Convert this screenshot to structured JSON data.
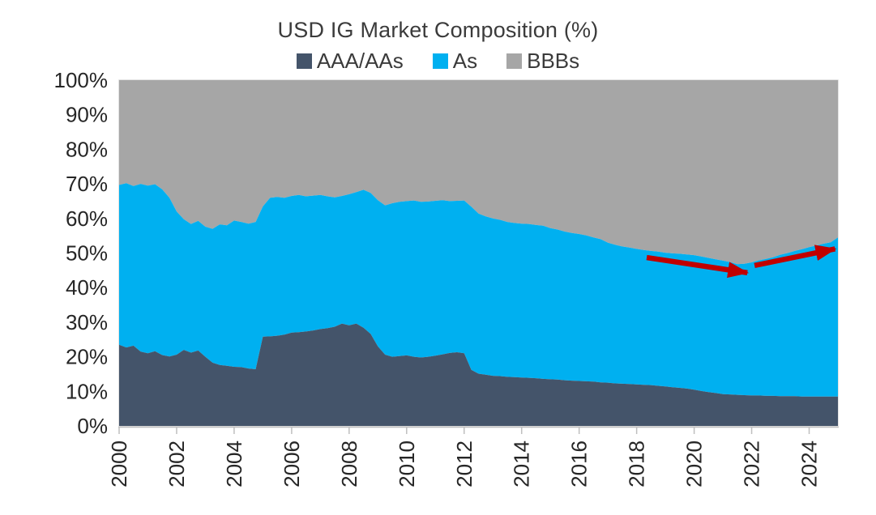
{
  "chart": {
    "title": "USD IG Market Composition (%)",
    "legend": [
      {
        "label": "AAA/AAs",
        "color": "#44546A"
      },
      {
        "label": "As",
        "color": "#00B0F0"
      },
      {
        "label": "BBBs",
        "color": "#A6A6A6"
      }
    ]
  },
  "axis": {
    "line_color": "#BFBFBF",
    "text_color": "#262626",
    "plot_border_color": "#D9D9D9"
  },
  "chart_data": {
    "type": "area",
    "stacked": true,
    "stack_total": 100,
    "title": "USD IG Market Composition (%)",
    "xlabel": "",
    "ylabel": "",
    "ylim": [
      0,
      100
    ],
    "grid": false,
    "legend_position": "top",
    "x_start": 2000.0,
    "x_end": 2025.0,
    "x_step": 0.25,
    "x_ticks": [
      2000,
      2002,
      2004,
      2006,
      2008,
      2010,
      2012,
      2014,
      2016,
      2018,
      2020,
      2022,
      2024
    ],
    "x_tick_labels": [
      "2000",
      "2002",
      "2004",
      "2006",
      "2008",
      "2010",
      "2012",
      "2014",
      "2016",
      "2018",
      "2020",
      "2022",
      "2024"
    ],
    "y_ticks": [
      0,
      10,
      20,
      30,
      40,
      50,
      60,
      70,
      80,
      90,
      100
    ],
    "y_tick_labels": [
      "0%",
      "10%",
      "20%",
      "30%",
      "40%",
      "50%",
      "60%",
      "70%",
      "80%",
      "90%",
      "100%"
    ],
    "series": [
      {
        "name": "AAA/AAs",
        "color": "#44546A",
        "values": [
          23.5,
          22.7,
          23.2,
          21.5,
          21.0,
          21.6,
          20.5,
          20.1,
          20.6,
          22.0,
          21.2,
          21.8,
          20.0,
          18.3,
          17.6,
          17.4,
          17.1,
          17.0,
          16.6,
          16.4,
          25.8,
          25.9,
          26.1,
          26.4,
          27.0,
          27.1,
          27.3,
          27.6,
          28.0,
          28.3,
          28.7,
          29.6,
          29.1,
          29.6,
          28.4,
          26.6,
          23.0,
          20.6,
          20.0,
          20.2,
          20.4,
          20.0,
          19.8,
          20.0,
          20.3,
          20.7,
          21.1,
          21.3,
          21.0,
          16.2,
          15.1,
          14.8,
          14.5,
          14.4,
          14.2,
          14.1,
          14.0,
          13.9,
          13.8,
          13.6,
          13.5,
          13.4,
          13.2,
          13.1,
          13.0,
          12.9,
          12.8,
          12.6,
          12.5,
          12.3,
          12.2,
          12.1,
          12.0,
          11.9,
          11.8,
          11.6,
          11.4,
          11.2,
          11.0,
          10.8,
          10.5,
          10.1,
          9.8,
          9.5,
          9.2,
          9.1,
          9.0,
          8.9,
          8.8,
          8.8,
          8.7,
          8.7,
          8.6,
          8.6,
          8.6,
          8.5,
          8.5,
          8.5,
          8.5,
          8.5,
          8.5
        ]
      },
      {
        "name": "As",
        "color": "#00B0F0",
        "values": [
          46.2,
          47.5,
          46.2,
          48.5,
          48.5,
          48.3,
          47.9,
          45.9,
          41.4,
          37.8,
          37.2,
          37.5,
          37.6,
          38.7,
          40.7,
          40.6,
          42.3,
          42.0,
          41.9,
          42.6,
          37.7,
          40.1,
          40.1,
          39.6,
          39.5,
          39.7,
          39.1,
          39.0,
          38.8,
          38.1,
          37.4,
          36.9,
          37.9,
          38.0,
          39.9,
          40.8,
          42.3,
          43.2,
          44.4,
          44.6,
          44.6,
          45.2,
          45.0,
          44.9,
          44.8,
          44.6,
          43.9,
          43.8,
          44.2,
          47.2,
          46.3,
          45.8,
          45.5,
          45.2,
          44.8,
          44.6,
          44.5,
          44.5,
          44.3,
          44.3,
          43.7,
          43.4,
          43.0,
          42.7,
          42.5,
          42.2,
          41.7,
          41.4,
          40.5,
          40.1,
          39.7,
          39.5,
          39.2,
          39.0,
          38.8,
          38.8,
          38.7,
          38.7,
          38.8,
          38.8,
          38.9,
          38.9,
          38.8,
          38.7,
          38.6,
          38.3,
          37.8,
          38.0,
          38.5,
          39.1,
          39.6,
          40.1,
          40.9,
          41.4,
          42.0,
          42.6,
          43.2,
          43.7,
          44.2,
          44.6,
          46.0
        ]
      },
      {
        "name": "BBBs",
        "color": "#A6A6A6",
        "values": [
          30.3,
          29.8,
          30.6,
          30.0,
          30.5,
          30.1,
          31.6,
          34.0,
          38.0,
          40.2,
          41.6,
          40.7,
          42.4,
          43.0,
          41.7,
          42.0,
          40.6,
          41.0,
          41.5,
          41.0,
          36.5,
          34.0,
          33.8,
          34.0,
          33.5,
          33.2,
          33.6,
          33.4,
          33.2,
          33.6,
          33.9,
          33.5,
          33.0,
          32.4,
          31.7,
          32.6,
          34.7,
          36.2,
          35.6,
          35.2,
          35.0,
          34.8,
          35.2,
          35.1,
          34.9,
          34.7,
          35.0,
          34.9,
          34.8,
          36.6,
          38.6,
          39.4,
          40.0,
          40.4,
          41.0,
          41.3,
          41.5,
          41.6,
          41.9,
          42.1,
          42.8,
          43.2,
          43.8,
          44.2,
          44.5,
          44.9,
          45.5,
          46.0,
          47.0,
          47.6,
          48.1,
          48.4,
          48.8,
          49.1,
          49.4,
          49.6,
          49.9,
          50.1,
          50.2,
          50.4,
          50.6,
          51.0,
          51.4,
          51.8,
          52.2,
          52.6,
          53.2,
          53.1,
          52.7,
          52.1,
          51.7,
          51.2,
          50.5,
          50.0,
          49.4,
          48.9,
          48.3,
          47.8,
          47.3,
          46.9,
          45.5
        ]
      }
    ],
    "annotations": [
      {
        "type": "arrow",
        "color": "#C00000",
        "from": {
          "year": 2018.35,
          "pct": 48.7
        },
        "to": {
          "year": 2021.85,
          "pct": 44.3
        }
      },
      {
        "type": "arrow",
        "color": "#C00000",
        "from": {
          "year": 2022.1,
          "pct": 46.4
        },
        "to": {
          "year": 2024.9,
          "pct": 51.2
        }
      }
    ]
  }
}
